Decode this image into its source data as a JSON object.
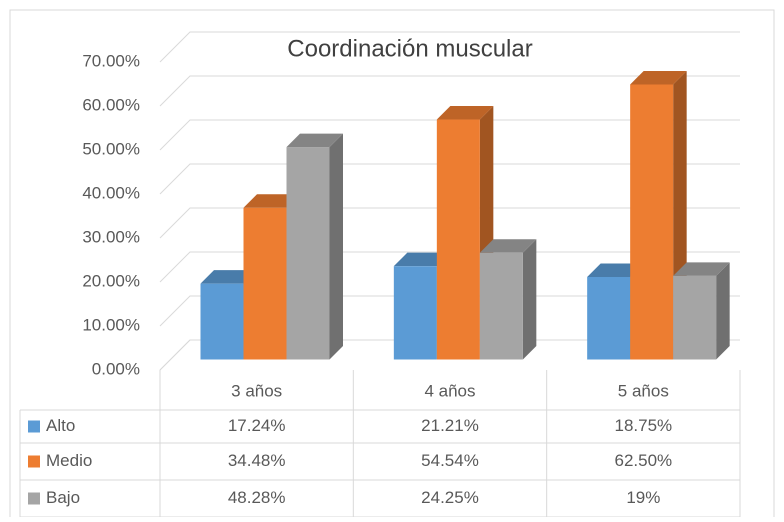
{
  "chart_data": {
    "type": "bar3d",
    "title": "Coordinación muscular",
    "categories": [
      "3 años",
      "4 años",
      "5 años"
    ],
    "series": [
      {
        "name": "Alto",
        "color": "#5b9bd5",
        "values": [
          17.24,
          21.21,
          18.75
        ],
        "value_labels": [
          "17.24%",
          "21.21%",
          "18.75%"
        ]
      },
      {
        "name": "Medio",
        "color": "#ed7d31",
        "values": [
          34.48,
          54.54,
          62.5
        ],
        "value_labels": [
          "34.48%",
          "54.54%",
          "62.50%"
        ]
      },
      {
        "name": "Bajo",
        "color": "#a5a5a5",
        "values": [
          48.28,
          24.25,
          19
        ],
        "value_labels": [
          "48.28%",
          "24.25%",
          "19%"
        ]
      }
    ],
    "ylim": [
      0,
      70
    ],
    "yticks": [
      {
        "value": 0,
        "label": "0.00%"
      },
      {
        "value": 10,
        "label": "10.00%"
      },
      {
        "value": 20,
        "label": "20.00%"
      },
      {
        "value": 30,
        "label": "30.00%"
      },
      {
        "value": 40,
        "label": "40.00%"
      },
      {
        "value": 50,
        "label": "50.00%"
      },
      {
        "value": 60,
        "label": "60.00%"
      },
      {
        "value": 70,
        "label": "70.00%"
      }
    ],
    "grid": true,
    "data_table": true
  }
}
